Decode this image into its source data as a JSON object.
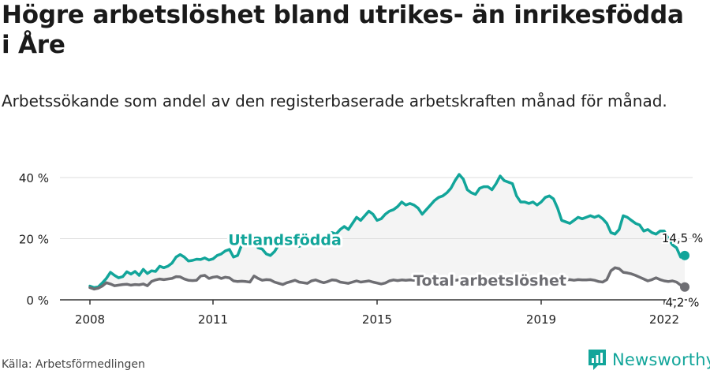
{
  "title": "Högre arbetslöshet bland utrikes- än inrikesfödda i Åre",
  "subtitle": "Arbetssökande som andel av den registerbaserade arbetskraften månad för månad.",
  "source": "Källa: Arbetsförmedlingen",
  "brand": "Newsworthy",
  "colors": {
    "accent": "#12a59a",
    "total": "#6e6e73",
    "area": "#f4f4f4",
    "grid": "#dddddd",
    "axis": "#333333"
  },
  "chart_data": {
    "type": "line",
    "xlim": [
      2008,
      2022
    ],
    "ylim": [
      0,
      40
    ],
    "y_ticks": [
      0,
      20,
      40
    ],
    "y_tick_labels": [
      "0 %",
      "20 %",
      "40 %"
    ],
    "x_ticks": [
      2008,
      2011,
      2015,
      2019,
      2022
    ],
    "x_tick_labels": [
      "2008",
      "2011",
      "2015",
      "2019",
      "2022"
    ],
    "series": [
      {
        "name": "Utlandsfödda",
        "end_label": "14,5 %",
        "points": [
          [
            2008.0,
            4.5
          ],
          [
            2008.1,
            4.0
          ],
          [
            2008.2,
            4.2
          ],
          [
            2008.3,
            5.5
          ],
          [
            2008.4,
            7.0
          ],
          [
            2008.5,
            9.0
          ],
          [
            2008.6,
            8.0
          ],
          [
            2008.7,
            7.2
          ],
          [
            2008.8,
            7.6
          ],
          [
            2008.9,
            9.2
          ],
          [
            2009.0,
            8.4
          ],
          [
            2009.1,
            9.3
          ],
          [
            2009.2,
            8.0
          ],
          [
            2009.3,
            10.0
          ],
          [
            2009.4,
            8.6
          ],
          [
            2009.5,
            9.5
          ],
          [
            2009.6,
            9.3
          ],
          [
            2009.7,
            11.0
          ],
          [
            2009.8,
            10.5
          ],
          [
            2009.9,
            11.0
          ],
          [
            2010.0,
            12.0
          ],
          [
            2010.1,
            14.0
          ],
          [
            2010.2,
            14.8
          ],
          [
            2010.3,
            14.0
          ],
          [
            2010.4,
            12.7
          ],
          [
            2010.5,
            12.9
          ],
          [
            2010.6,
            13.3
          ],
          [
            2010.7,
            13.2
          ],
          [
            2010.8,
            13.7
          ],
          [
            2010.9,
            13.0
          ],
          [
            2011.0,
            13.4
          ],
          [
            2011.1,
            14.5
          ],
          [
            2011.2,
            15.0
          ],
          [
            2011.3,
            16.0
          ],
          [
            2011.4,
            16.5
          ],
          [
            2011.5,
            14.0
          ],
          [
            2011.6,
            14.5
          ],
          [
            2011.7,
            18.0
          ],
          [
            2011.8,
            19.0
          ],
          [
            2011.9,
            18.5
          ],
          [
            2012.0,
            19.0
          ],
          [
            2012.1,
            17.0
          ],
          [
            2012.2,
            16.6
          ],
          [
            2012.3,
            15.0
          ],
          [
            2012.4,
            14.5
          ],
          [
            2012.5,
            15.8
          ],
          [
            2012.6,
            18.0
          ],
          [
            2012.7,
            19.0
          ],
          [
            2012.8,
            20.0
          ],
          [
            2012.9,
            19.5
          ],
          [
            2013.0,
            19.0
          ],
          [
            2013.1,
            17.5
          ],
          [
            2013.2,
            18.0
          ],
          [
            2013.3,
            19.5
          ],
          [
            2013.4,
            20.5
          ],
          [
            2013.5,
            19.0
          ],
          [
            2013.6,
            19.5
          ],
          [
            2013.7,
            20.5
          ],
          [
            2013.8,
            21.5
          ],
          [
            2013.9,
            22.0
          ],
          [
            2014.0,
            21.5
          ],
          [
            2014.1,
            23.0
          ],
          [
            2014.2,
            24.0
          ],
          [
            2014.3,
            23.0
          ],
          [
            2014.4,
            25.0
          ],
          [
            2014.5,
            27.0
          ],
          [
            2014.6,
            26.0
          ],
          [
            2014.7,
            27.5
          ],
          [
            2014.8,
            29.0
          ],
          [
            2014.9,
            28.0
          ],
          [
            2015.0,
            26.0
          ],
          [
            2015.1,
            26.5
          ],
          [
            2015.2,
            28.0
          ],
          [
            2015.3,
            29.0
          ],
          [
            2015.4,
            29.5
          ],
          [
            2015.5,
            30.5
          ],
          [
            2015.6,
            32.0
          ],
          [
            2015.7,
            31.0
          ],
          [
            2015.8,
            31.5
          ],
          [
            2015.9,
            31.0
          ],
          [
            2016.0,
            30.0
          ],
          [
            2016.1,
            28.0
          ],
          [
            2016.2,
            29.5
          ],
          [
            2016.3,
            31.0
          ],
          [
            2016.4,
            32.5
          ],
          [
            2016.5,
            33.5
          ],
          [
            2016.6,
            34.0
          ],
          [
            2016.7,
            35.0
          ],
          [
            2016.8,
            36.5
          ],
          [
            2016.9,
            39.0
          ],
          [
            2017.0,
            41.0
          ],
          [
            2017.1,
            39.5
          ],
          [
            2017.2,
            36.0
          ],
          [
            2017.3,
            35.0
          ],
          [
            2017.4,
            34.5
          ],
          [
            2017.5,
            36.5
          ],
          [
            2017.6,
            37.0
          ],
          [
            2017.7,
            37.0
          ],
          [
            2017.8,
            36.0
          ],
          [
            2017.9,
            38.0
          ],
          [
            2018.0,
            40.5
          ],
          [
            2018.1,
            39.0
          ],
          [
            2018.2,
            38.5
          ],
          [
            2018.3,
            38.0
          ],
          [
            2018.4,
            34.0
          ],
          [
            2018.5,
            32.0
          ],
          [
            2018.6,
            32.0
          ],
          [
            2018.7,
            31.5
          ],
          [
            2018.8,
            32.0
          ],
          [
            2018.9,
            31.0
          ],
          [
            2019.0,
            32.0
          ],
          [
            2019.1,
            33.5
          ],
          [
            2019.2,
            34.0
          ],
          [
            2019.3,
            33.0
          ],
          [
            2019.4,
            30.0
          ],
          [
            2019.5,
            26.0
          ],
          [
            2019.6,
            25.5
          ],
          [
            2019.7,
            25.0
          ],
          [
            2019.8,
            26.0
          ],
          [
            2019.9,
            27.0
          ],
          [
            2020.0,
            26.5
          ],
          [
            2020.1,
            27.0
          ],
          [
            2020.2,
            27.5
          ],
          [
            2020.3,
            27.0
          ],
          [
            2020.4,
            27.5
          ],
          [
            2020.5,
            26.5
          ],
          [
            2020.6,
            25.0
          ],
          [
            2020.7,
            22.0
          ],
          [
            2020.8,
            21.5
          ],
          [
            2020.9,
            23.0
          ],
          [
            2021.0,
            27.5
          ],
          [
            2021.1,
            27.0
          ],
          [
            2021.2,
            26.0
          ],
          [
            2021.3,
            25.0
          ],
          [
            2021.4,
            24.5
          ],
          [
            2021.5,
            22.5
          ],
          [
            2021.6,
            23.0
          ],
          [
            2021.7,
            22.0
          ],
          [
            2021.8,
            21.5
          ],
          [
            2021.9,
            22.5
          ],
          [
            2022.0,
            22.5
          ],
          [
            2022.1,
            20.0
          ],
          [
            2022.2,
            18.0
          ],
          [
            2022.3,
            17.0
          ],
          [
            2022.4,
            14.0
          ],
          [
            2022.5,
            14.5
          ]
        ]
      },
      {
        "name": "Total arbetslöshet",
        "end_label": "4,2 %",
        "points": [
          [
            2008.0,
            4.0
          ],
          [
            2008.1,
            3.5
          ],
          [
            2008.2,
            3.8
          ],
          [
            2008.3,
            4.5
          ],
          [
            2008.4,
            5.6
          ],
          [
            2008.5,
            5.2
          ],
          [
            2008.6,
            4.6
          ],
          [
            2008.7,
            4.8
          ],
          [
            2008.8,
            5.0
          ],
          [
            2008.9,
            5.1
          ],
          [
            2009.0,
            4.8
          ],
          [
            2009.1,
            5.0
          ],
          [
            2009.2,
            4.9
          ],
          [
            2009.3,
            5.2
          ],
          [
            2009.4,
            4.6
          ],
          [
            2009.5,
            6.0
          ],
          [
            2009.6,
            6.5
          ],
          [
            2009.7,
            6.8
          ],
          [
            2009.8,
            6.6
          ],
          [
            2009.9,
            6.8
          ],
          [
            2010.0,
            7.0
          ],
          [
            2010.1,
            7.6
          ],
          [
            2010.2,
            7.5
          ],
          [
            2010.3,
            6.8
          ],
          [
            2010.4,
            6.4
          ],
          [
            2010.5,
            6.3
          ],
          [
            2010.6,
            6.4
          ],
          [
            2010.7,
            7.8
          ],
          [
            2010.8,
            8.0
          ],
          [
            2010.9,
            7.0
          ],
          [
            2011.0,
            7.4
          ],
          [
            2011.1,
            7.6
          ],
          [
            2011.2,
            7.0
          ],
          [
            2011.3,
            7.4
          ],
          [
            2011.4,
            7.2
          ],
          [
            2011.5,
            6.2
          ],
          [
            2011.6,
            6.0
          ],
          [
            2011.7,
            6.1
          ],
          [
            2011.8,
            6.0
          ],
          [
            2011.9,
            5.8
          ],
          [
            2012.0,
            7.8
          ],
          [
            2012.1,
            7.0
          ],
          [
            2012.2,
            6.4
          ],
          [
            2012.3,
            6.6
          ],
          [
            2012.4,
            6.5
          ],
          [
            2012.5,
            5.8
          ],
          [
            2012.6,
            5.4
          ],
          [
            2012.7,
            5.0
          ],
          [
            2012.8,
            5.6
          ],
          [
            2012.9,
            6.0
          ],
          [
            2013.0,
            6.4
          ],
          [
            2013.1,
            5.8
          ],
          [
            2013.2,
            5.6
          ],
          [
            2013.3,
            5.4
          ],
          [
            2013.4,
            6.2
          ],
          [
            2013.5,
            6.5
          ],
          [
            2013.6,
            6.0
          ],
          [
            2013.7,
            5.6
          ],
          [
            2013.8,
            6.0
          ],
          [
            2013.9,
            6.5
          ],
          [
            2014.0,
            6.4
          ],
          [
            2014.1,
            5.8
          ],
          [
            2014.2,
            5.6
          ],
          [
            2014.3,
            5.4
          ],
          [
            2014.4,
            5.8
          ],
          [
            2014.5,
            6.2
          ],
          [
            2014.6,
            5.8
          ],
          [
            2014.7,
            6.0
          ],
          [
            2014.8,
            6.2
          ],
          [
            2014.9,
            5.8
          ],
          [
            2015.0,
            5.5
          ],
          [
            2015.1,
            5.2
          ],
          [
            2015.2,
            5.5
          ],
          [
            2015.3,
            6.2
          ],
          [
            2015.4,
            6.5
          ],
          [
            2015.5,
            6.3
          ],
          [
            2015.6,
            6.5
          ],
          [
            2015.7,
            6.4
          ],
          [
            2015.8,
            6.5
          ],
          [
            2015.9,
            6.4
          ],
          [
            2016.0,
            6.5
          ],
          [
            2016.1,
            6.3
          ],
          [
            2016.2,
            6.4
          ],
          [
            2016.3,
            6.5
          ],
          [
            2016.4,
            6.4
          ],
          [
            2016.5,
            6.5
          ],
          [
            2016.6,
            6.4
          ],
          [
            2016.7,
            6.5
          ],
          [
            2016.8,
            6.6
          ],
          [
            2016.9,
            6.4
          ],
          [
            2017.0,
            6.5
          ],
          [
            2017.1,
            6.4
          ],
          [
            2017.2,
            6.5
          ],
          [
            2017.3,
            6.4
          ],
          [
            2017.4,
            6.5
          ],
          [
            2017.5,
            6.6
          ],
          [
            2017.6,
            6.4
          ],
          [
            2017.7,
            6.5
          ],
          [
            2017.8,
            6.4
          ],
          [
            2017.9,
            6.5
          ],
          [
            2018.0,
            6.5
          ],
          [
            2018.1,
            6.4
          ],
          [
            2018.2,
            6.5
          ],
          [
            2018.3,
            6.6
          ],
          [
            2018.4,
            6.4
          ],
          [
            2018.5,
            6.5
          ],
          [
            2018.6,
            6.4
          ],
          [
            2018.7,
            6.5
          ],
          [
            2018.8,
            6.5
          ],
          [
            2018.9,
            6.4
          ],
          [
            2019.0,
            6.5
          ],
          [
            2019.1,
            6.6
          ],
          [
            2019.2,
            6.5
          ],
          [
            2019.3,
            6.4
          ],
          [
            2019.4,
            6.5
          ],
          [
            2019.5,
            6.4
          ],
          [
            2019.6,
            6.5
          ],
          [
            2019.7,
            6.6
          ],
          [
            2019.8,
            6.4
          ],
          [
            2019.9,
            6.6
          ],
          [
            2020.0,
            6.5
          ],
          [
            2020.1,
            6.5
          ],
          [
            2020.2,
            6.6
          ],
          [
            2020.3,
            6.4
          ],
          [
            2020.4,
            6.0
          ],
          [
            2020.5,
            5.8
          ],
          [
            2020.6,
            6.6
          ],
          [
            2020.7,
            9.5
          ],
          [
            2020.8,
            10.5
          ],
          [
            2020.9,
            10.2
          ],
          [
            2021.0,
            9.0
          ],
          [
            2021.1,
            8.8
          ],
          [
            2021.2,
            8.5
          ],
          [
            2021.3,
            8.0
          ],
          [
            2021.4,
            7.4
          ],
          [
            2021.5,
            6.8
          ],
          [
            2021.6,
            6.2
          ],
          [
            2021.7,
            6.6
          ],
          [
            2021.8,
            7.2
          ],
          [
            2021.9,
            6.6
          ],
          [
            2022.0,
            6.2
          ],
          [
            2022.1,
            6.0
          ],
          [
            2022.2,
            6.2
          ],
          [
            2022.3,
            5.8
          ],
          [
            2022.4,
            4.8
          ],
          [
            2022.5,
            4.2
          ]
        ]
      }
    ]
  }
}
